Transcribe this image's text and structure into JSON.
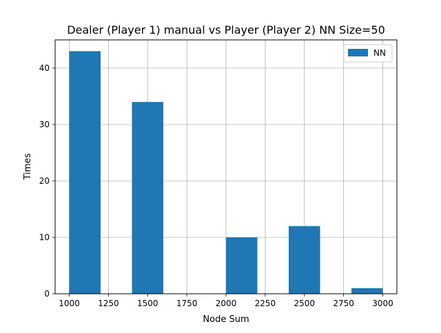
{
  "chart_data": {
    "type": "bar",
    "title": "Dealer (Player 1) manual vs Player (Player 2) NN Size=50",
    "xlabel": "Node Sum",
    "ylabel": "Times",
    "xlim": [
      910,
      3090
    ],
    "ylim": [
      0,
      45
    ],
    "xticks": [
      1000,
      1250,
      1500,
      1750,
      2000,
      2250,
      2500,
      2750,
      3000
    ],
    "yticks": [
      0,
      10,
      20,
      30,
      40
    ],
    "grid": true,
    "legend": {
      "position": "top-right",
      "entries": [
        "NN"
      ]
    },
    "series": [
      {
        "name": "NN",
        "color": "#1f77b4",
        "bins": [
          {
            "start": 1000,
            "end": 1200,
            "value": 43
          },
          {
            "start": 1400,
            "end": 1600,
            "value": 34
          },
          {
            "start": 2000,
            "end": 2200,
            "value": 10
          },
          {
            "start": 2400,
            "end": 2600,
            "value": 12
          },
          {
            "start": 2800,
            "end": 3000,
            "value": 1
          }
        ]
      }
    ]
  }
}
